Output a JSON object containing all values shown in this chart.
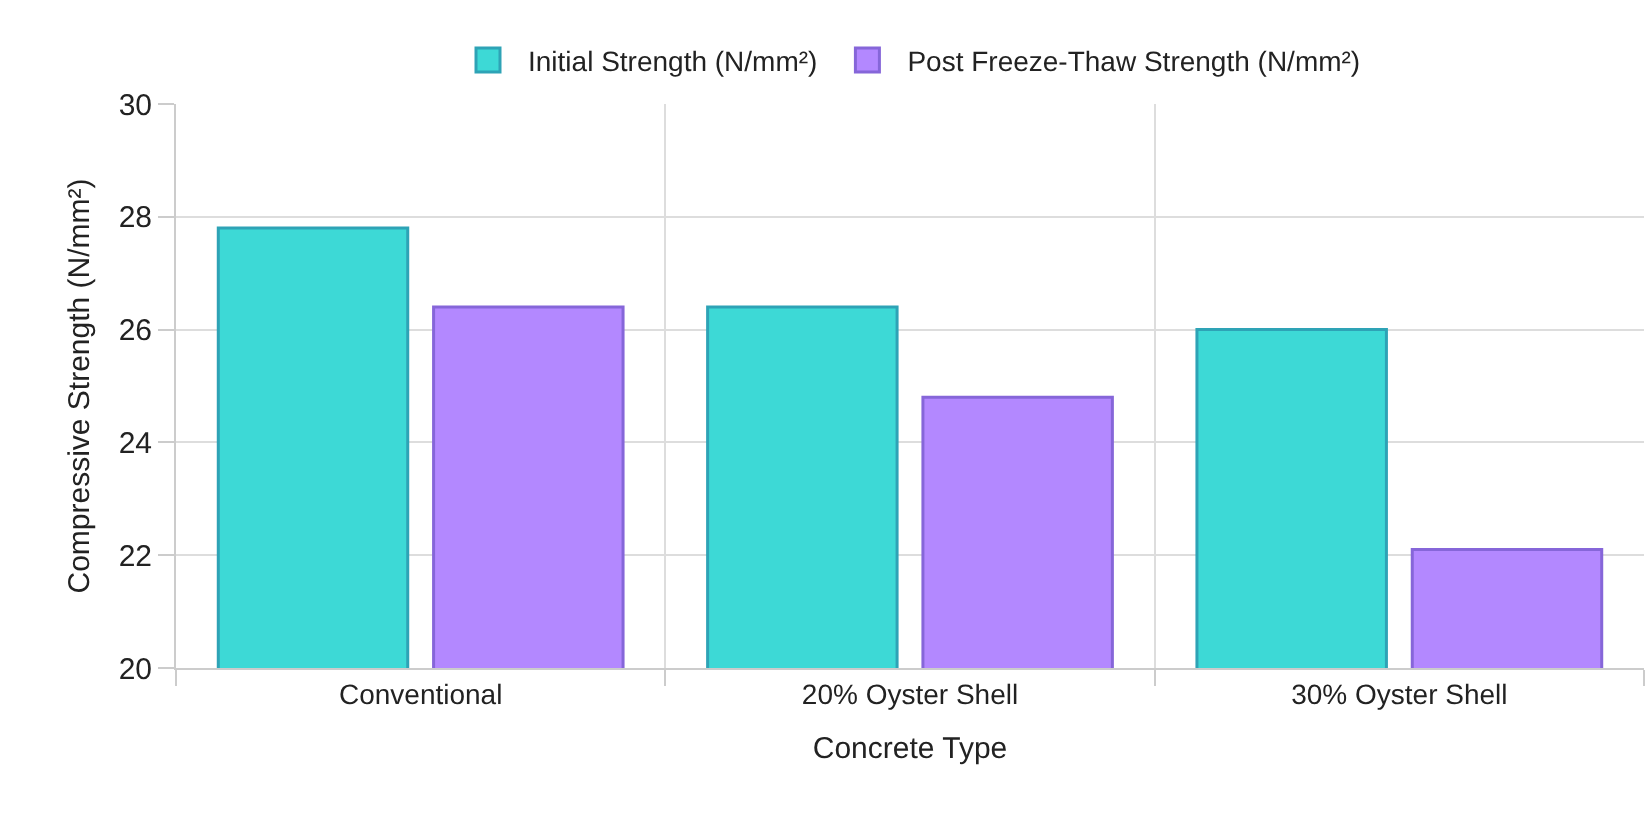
{
  "chart_data": {
    "type": "bar",
    "xlabel": "Concrete Type",
    "ylabel": "Compressive Strength (N/mm²)",
    "categories": [
      "Conventional",
      "20% Oyster Shell",
      "30% Oyster Shell"
    ],
    "series": [
      {
        "name": "Initial Strength (N/mm²)",
        "color": "#3dd9d6",
        "values": [
          27.8,
          26.4,
          26.0
        ]
      },
      {
        "name": "Post Freeze-Thaw Strength (N/mm²)",
        "color": "#b388ff",
        "values": [
          26.4,
          24.8,
          22.1
        ]
      }
    ],
    "ylim": [
      20,
      30
    ],
    "yticks": [
      20,
      22,
      24,
      26,
      28,
      30
    ],
    "grid": true,
    "legend": "top"
  }
}
